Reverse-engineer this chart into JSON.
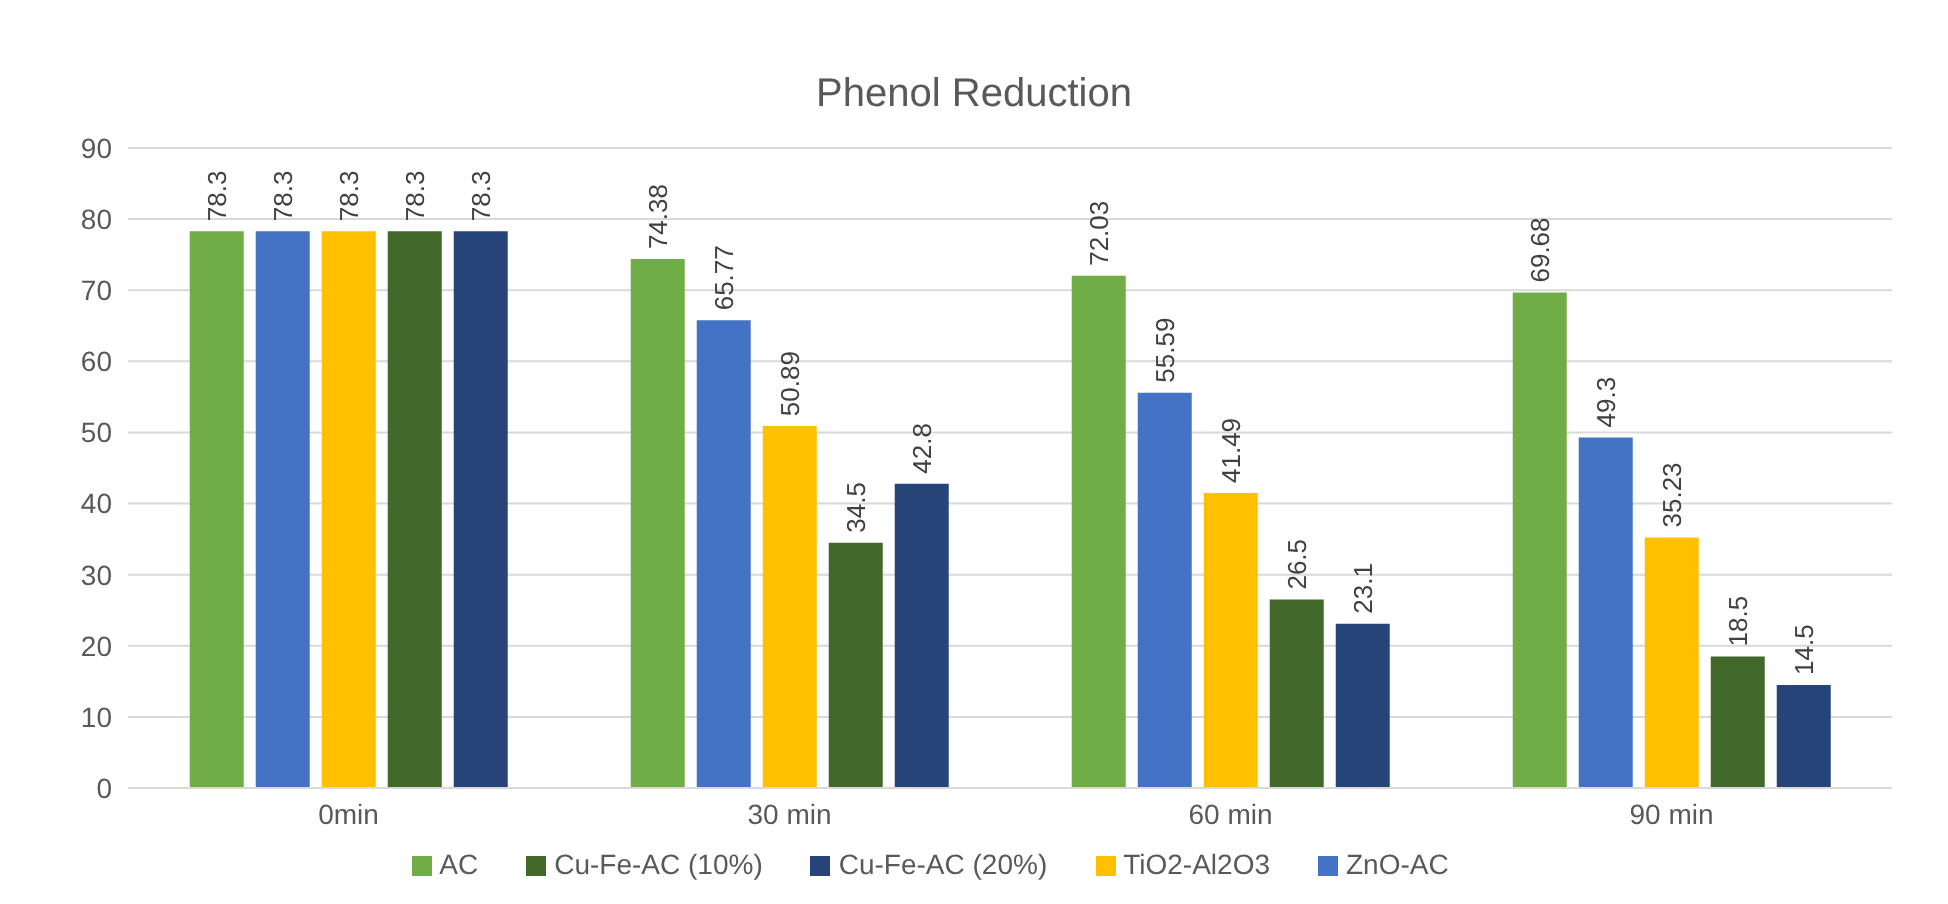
{
  "chart_data": {
    "type": "bar",
    "title": "Phenol Reduction",
    "categories": [
      "0min",
      "30 min",
      "60 min",
      "90 min"
    ],
    "series": [
      {
        "name": "AC",
        "color": "#70ad47",
        "values": [
          78.3,
          74.38,
          72.03,
          69.68
        ]
      },
      {
        "name": "ZnO-AC",
        "color": "#4472c4",
        "values": [
          78.3,
          65.77,
          55.59,
          49.3
        ]
      },
      {
        "name": "TiO2-Al2O3",
        "color": "#ffc000",
        "values": [
          78.3,
          50.89,
          41.49,
          35.23
        ]
      },
      {
        "name": "Cu-Fe-AC (10%)",
        "color": "#43682b",
        "values": [
          78.3,
          34.5,
          26.5,
          18.5
        ]
      },
      {
        "name": "Cu-Fe-AC (20%)",
        "color": "#264478",
        "values": [
          78.3,
          42.8,
          23.1,
          14.5
        ]
      }
    ],
    "ylim": [
      0,
      90
    ],
    "yticks": [
      0,
      10,
      20,
      30,
      40,
      50,
      60,
      70,
      80,
      90
    ],
    "grid": "y",
    "legend": "bottom",
    "data_labels": true
  }
}
